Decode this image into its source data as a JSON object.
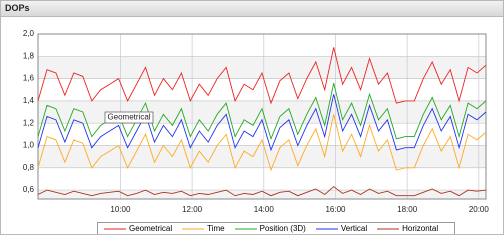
{
  "chart_data": {
    "type": "line",
    "title": "DOPs",
    "annotation": "Geometrical",
    "x": [
      7.7,
      7.95,
      8.2,
      8.45,
      8.7,
      8.95,
      9.2,
      9.45,
      9.7,
      9.95,
      10.2,
      10.45,
      10.7,
      10.95,
      11.2,
      11.45,
      11.7,
      11.95,
      12.2,
      12.45,
      12.7,
      12.95,
      13.2,
      13.45,
      13.7,
      13.95,
      14.2,
      14.45,
      14.7,
      14.95,
      15.2,
      15.45,
      15.7,
      15.95,
      16.2,
      16.45,
      16.7,
      16.95,
      17.2,
      17.45,
      17.7,
      17.95,
      18.2,
      18.45,
      18.7,
      18.95,
      19.2,
      19.45,
      19.7,
      19.95,
      20.2
    ],
    "xlim": [
      7.7,
      20.2
    ],
    "xticks": [
      {
        "value": 10,
        "label": "10:00"
      },
      {
        "value": 12,
        "label": "12:00"
      },
      {
        "value": 14,
        "label": "14:00"
      },
      {
        "value": 16,
        "label": "16:00"
      },
      {
        "value": 18,
        "label": "18:00"
      },
      {
        "value": 20,
        "label": "20:00"
      }
    ],
    "ylim": [
      0.52,
      2.0
    ],
    "yticks": [
      {
        "value": 0.6,
        "label": "0,6"
      },
      {
        "value": 0.8,
        "label": "0,8"
      },
      {
        "value": 1.0,
        "label": "1,0"
      },
      {
        "value": 1.2,
        "label": "1,2"
      },
      {
        "value": 1.4,
        "label": "1,4"
      },
      {
        "value": 1.6,
        "label": "1,6"
      },
      {
        "value": 1.8,
        "label": "1,8"
      },
      {
        "value": 2.0,
        "label": "2,0"
      }
    ],
    "grid": true,
    "series": [
      {
        "name": "Geometrical",
        "color": "#ee2222",
        "values": [
          1.4,
          1.68,
          1.65,
          1.45,
          1.65,
          1.62,
          1.4,
          1.5,
          1.55,
          1.6,
          1.4,
          1.55,
          1.7,
          1.45,
          1.6,
          1.5,
          1.65,
          1.4,
          1.55,
          1.45,
          1.6,
          1.7,
          1.4,
          1.55,
          1.5,
          1.65,
          1.38,
          1.58,
          1.65,
          1.42,
          1.6,
          1.75,
          1.5,
          1.88,
          1.55,
          1.7,
          1.5,
          1.78,
          1.55,
          1.65,
          1.38,
          1.4,
          1.4,
          1.6,
          1.75,
          1.55,
          1.68,
          1.4,
          1.7,
          1.65,
          1.72
        ]
      },
      {
        "name": "Time",
        "color": "#ffaa22",
        "values": [
          0.8,
          1.08,
          1.05,
          0.85,
          1.05,
          1.02,
          0.8,
          0.9,
          0.95,
          1.0,
          0.8,
          0.95,
          1.1,
          0.85,
          1.0,
          0.9,
          1.05,
          0.8,
          0.95,
          0.85,
          1.0,
          1.1,
          0.8,
          0.95,
          0.9,
          1.05,
          0.78,
          0.98,
          1.05,
          0.82,
          1.0,
          1.15,
          0.9,
          1.28,
          0.95,
          1.1,
          0.9,
          1.18,
          0.95,
          1.05,
          0.78,
          0.8,
          0.8,
          1.0,
          1.15,
          0.95,
          1.08,
          0.8,
          1.1,
          1.05,
          1.12
        ]
      },
      {
        "name": "Position (3D)",
        "color": "#22aa22",
        "values": [
          1.08,
          1.36,
          1.33,
          1.13,
          1.33,
          1.3,
          1.08,
          1.18,
          1.23,
          1.28,
          1.08,
          1.23,
          1.38,
          1.13,
          1.28,
          1.18,
          1.33,
          1.08,
          1.23,
          1.13,
          1.28,
          1.38,
          1.08,
          1.23,
          1.18,
          1.33,
          1.06,
          1.26,
          1.33,
          1.1,
          1.28,
          1.43,
          1.18,
          1.56,
          1.23,
          1.38,
          1.18,
          1.46,
          1.23,
          1.33,
          1.06,
          1.08,
          1.08,
          1.28,
          1.43,
          1.23,
          1.36,
          1.08,
          1.38,
          1.33,
          1.4
        ]
      },
      {
        "name": "Vertical",
        "color": "#2233ee",
        "values": [
          0.98,
          1.26,
          1.23,
          1.03,
          1.23,
          1.2,
          0.98,
          1.08,
          1.13,
          1.18,
          0.98,
          1.13,
          1.28,
          1.03,
          1.18,
          1.08,
          1.23,
          0.98,
          1.13,
          1.03,
          1.18,
          1.28,
          0.98,
          1.13,
          1.08,
          1.23,
          0.96,
          1.16,
          1.23,
          1.0,
          1.18,
          1.33,
          1.08,
          1.46,
          1.13,
          1.28,
          1.08,
          1.36,
          1.13,
          1.23,
          0.96,
          0.98,
          0.98,
          1.18,
          1.33,
          1.13,
          1.26,
          0.98,
          1.28,
          1.23,
          1.3
        ]
      },
      {
        "name": "Horizontal",
        "color": "#aa3322",
        "values": [
          0.56,
          0.6,
          0.58,
          0.56,
          0.59,
          0.57,
          0.55,
          0.57,
          0.58,
          0.59,
          0.55,
          0.57,
          0.6,
          0.56,
          0.58,
          0.57,
          0.59,
          0.55,
          0.57,
          0.56,
          0.58,
          0.6,
          0.55,
          0.57,
          0.56,
          0.59,
          0.55,
          0.58,
          0.59,
          0.55,
          0.58,
          0.61,
          0.56,
          0.63,
          0.57,
          0.6,
          0.56,
          0.61,
          0.57,
          0.59,
          0.55,
          0.55,
          0.55,
          0.58,
          0.61,
          0.57,
          0.59,
          0.55,
          0.6,
          0.59,
          0.6
        ]
      }
    ]
  }
}
